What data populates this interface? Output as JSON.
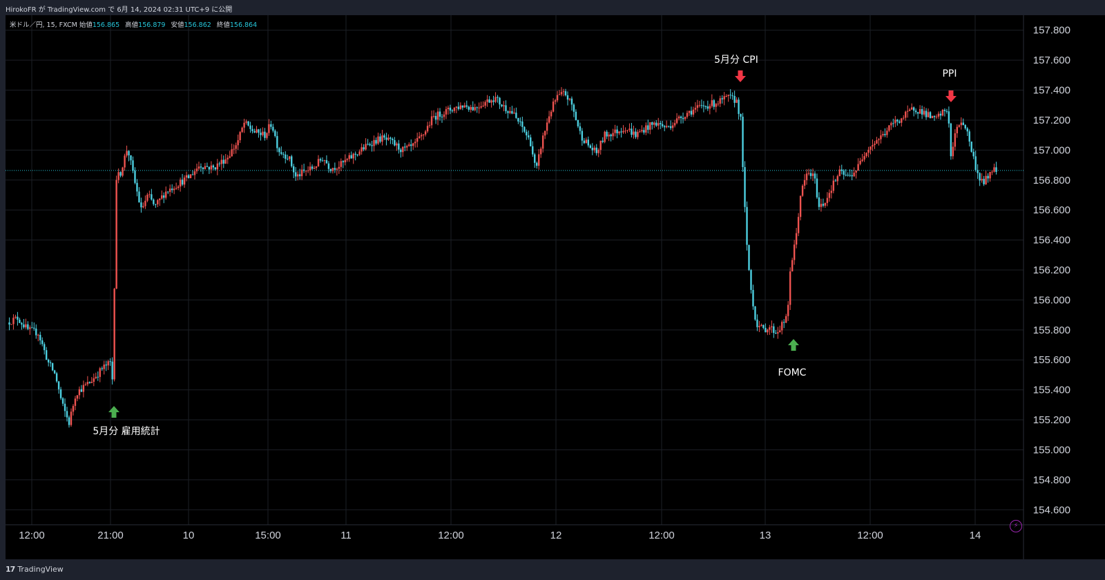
{
  "header": {
    "published_line": "HirokoFR が TradingView.com で 6月 14, 2024 02:31 UTC+9 に公開"
  },
  "legend": {
    "symbol": "米ドル／円, 15, FXCM",
    "open_label": "始値",
    "open": "156.865",
    "high_label": "高値",
    "high": "156.879",
    "low_label": "安値",
    "low": "156.862",
    "close_label": "終値",
    "close": "156.864"
  },
  "brand": {
    "name": "TradingView"
  },
  "colors": {
    "up": "#ef5350",
    "down": "#4dd0e1",
    "arrow_up": "#4caf50",
    "arrow_down": "#f23645",
    "grid": "#1c1f26",
    "last_line": "#26c6da"
  },
  "chart_data": {
    "type": "candlestick",
    "symbol": "米ドル／円",
    "interval": "15",
    "ylim": [
      154.5,
      157.9
    ],
    "y_ticks": [
      "157.800",
      "157.600",
      "157.400",
      "157.200",
      "157.000",
      "156.800",
      "156.600",
      "156.400",
      "156.200",
      "156.000",
      "155.800",
      "155.600",
      "155.400",
      "155.200",
      "155.000",
      "154.800",
      "154.600"
    ],
    "x_ticks": [
      "12:00",
      "21:00",
      "10",
      "15:00",
      "11",
      "12:00",
      "12",
      "12:00",
      "13",
      "12:00",
      "14"
    ],
    "last_price": 156.864,
    "annotations": [
      {
        "label": "5月分 雇用統計",
        "direction": "up"
      },
      {
        "label": "5月分 CPI",
        "direction": "down"
      },
      {
        "label": "FOMC",
        "direction": "up"
      },
      {
        "label": "PPI",
        "direction": "down"
      }
    ],
    "price_path": [
      [
        0,
        155.85
      ],
      [
        15,
        155.88
      ],
      [
        30,
        155.8
      ],
      [
        45,
        155.78
      ],
      [
        60,
        155.58
      ],
      [
        70,
        155.5
      ],
      [
        80,
        155.3
      ],
      [
        90,
        155.18
      ],
      [
        100,
        155.38
      ],
      [
        120,
        155.45
      ],
      [
        140,
        155.55
      ],
      [
        150,
        155.58
      ],
      [
        155,
        155.4
      ],
      [
        157,
        156.8
      ],
      [
        165,
        156.85
      ],
      [
        175,
        157.02
      ],
      [
        185,
        156.8
      ],
      [
        195,
        156.6
      ],
      [
        205,
        156.7
      ],
      [
        215,
        156.62
      ],
      [
        230,
        156.72
      ],
      [
        250,
        156.78
      ],
      [
        265,
        156.82
      ],
      [
        280,
        156.9
      ],
      [
        300,
        156.88
      ],
      [
        320,
        156.95
      ],
      [
        335,
        157.05
      ],
      [
        345,
        157.18
      ],
      [
        360,
        157.12
      ],
      [
        375,
        157.1
      ],
      [
        385,
        157.18
      ],
      [
        395,
        157.0
      ],
      [
        410,
        156.95
      ],
      [
        420,
        156.82
      ],
      [
        430,
        156.85
      ],
      [
        445,
        156.88
      ],
      [
        460,
        156.95
      ],
      [
        470,
        156.88
      ],
      [
        485,
        156.9
      ],
      [
        500,
        156.95
      ],
      [
        515,
        157.0
      ],
      [
        530,
        157.05
      ],
      [
        545,
        157.08
      ],
      [
        560,
        157.05
      ],
      [
        575,
        157.0
      ],
      [
        590,
        157.02
      ],
      [
        605,
        157.1
      ],
      [
        620,
        157.22
      ],
      [
        635,
        157.25
      ],
      [
        650,
        157.28
      ],
      [
        665,
        157.3
      ],
      [
        680,
        157.28
      ],
      [
        695,
        157.32
      ],
      [
        710,
        157.35
      ],
      [
        720,
        157.3
      ],
      [
        735,
        157.25
      ],
      [
        750,
        157.15
      ],
      [
        762,
        157.05
      ],
      [
        770,
        156.85
      ],
      [
        778,
        157.05
      ],
      [
        790,
        157.25
      ],
      [
        800,
        157.35
      ],
      [
        812,
        157.38
      ],
      [
        822,
        157.3
      ],
      [
        835,
        157.1
      ],
      [
        848,
        157.02
      ],
      [
        858,
        156.98
      ],
      [
        870,
        157.1
      ],
      [
        885,
        157.12
      ],
      [
        900,
        157.15
      ],
      [
        915,
        157.1
      ],
      [
        930,
        157.15
      ],
      [
        945,
        157.18
      ],
      [
        960,
        157.15
      ],
      [
        975,
        157.2
      ],
      [
        990,
        157.25
      ],
      [
        1005,
        157.28
      ],
      [
        1020,
        157.3
      ],
      [
        1035,
        157.32
      ],
      [
        1050,
        157.35
      ],
      [
        1062,
        157.33
      ],
      [
        1068,
        157.2
      ],
      [
        1072,
        156.8
      ],
      [
        1076,
        156.4
      ],
      [
        1082,
        156.1
      ],
      [
        1090,
        155.85
      ],
      [
        1100,
        155.8
      ],
      [
        1110,
        155.82
      ],
      [
        1120,
        155.78
      ],
      [
        1130,
        155.85
      ],
      [
        1136,
        155.88
      ],
      [
        1140,
        156.2
      ],
      [
        1148,
        156.4
      ],
      [
        1155,
        156.7
      ],
      [
        1165,
        156.85
      ],
      [
        1175,
        156.82
      ],
      [
        1182,
        156.62
      ],
      [
        1190,
        156.65
      ],
      [
        1200,
        156.75
      ],
      [
        1212,
        156.85
      ],
      [
        1225,
        156.82
      ],
      [
        1238,
        156.88
      ],
      [
        1250,
        157.0
      ],
      [
        1262,
        157.05
      ],
      [
        1275,
        157.1
      ],
      [
        1290,
        157.18
      ],
      [
        1305,
        157.22
      ],
      [
        1320,
        157.28
      ],
      [
        1335,
        157.25
      ],
      [
        1350,
        157.2
      ],
      [
        1362,
        157.25
      ],
      [
        1370,
        157.27
      ],
      [
        1374,
        156.95
      ],
      [
        1380,
        157.1
      ],
      [
        1388,
        157.2
      ],
      [
        1396,
        157.15
      ],
      [
        1404,
        157.0
      ],
      [
        1412,
        156.85
      ],
      [
        1420,
        156.78
      ],
      [
        1428,
        156.82
      ],
      [
        1434,
        156.88
      ],
      [
        1440,
        156.864
      ]
    ]
  }
}
